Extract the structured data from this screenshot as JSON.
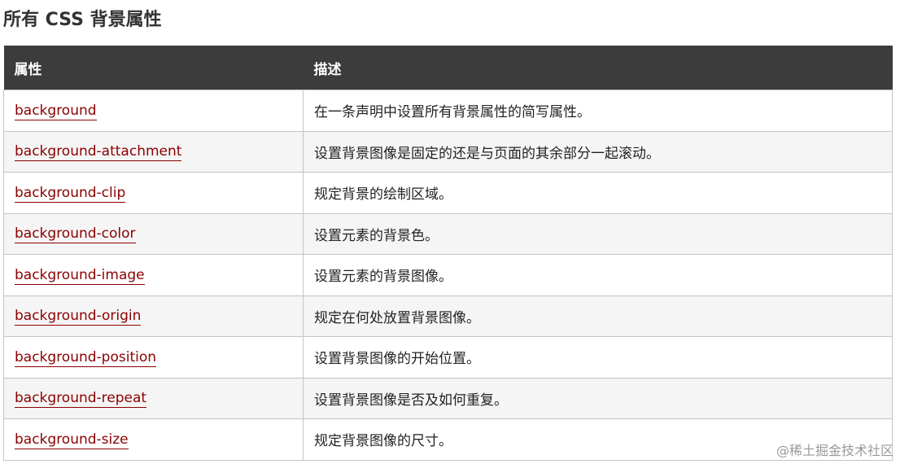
{
  "title": "所有 CSS 背景属性",
  "headers": [
    "属性",
    "描述"
  ],
  "rows": [
    {
      "property": "background",
      "description": "在一条声明中设置所有背景属性的简写属性。"
    },
    {
      "property": "background-attachment",
      "description": "设置背景图像是固定的还是与页面的其余部分一起滚动。"
    },
    {
      "property": "background-clip",
      "description": "规定背景的绘制区域。"
    },
    {
      "property": "background-color",
      "description": "设置元素的背景色。"
    },
    {
      "property": "background-image",
      "description": "设置元素的背景图像。"
    },
    {
      "property": "background-origin",
      "description": "规定在何处放置背景图像。"
    },
    {
      "property": "background-position",
      "description": "设置背景图像的开始位置。"
    },
    {
      "property": "background-repeat",
      "description": "设置背景图像是否及如何重复。"
    },
    {
      "property": "background-size",
      "description": "规定背景图像的尺寸。"
    }
  ],
  "watermark": "@稀土掘金技术社区",
  "colors": {
    "header_bg": "#3c3c3c",
    "link": "#8b0000",
    "alt_row": "#f5f5f5"
  }
}
